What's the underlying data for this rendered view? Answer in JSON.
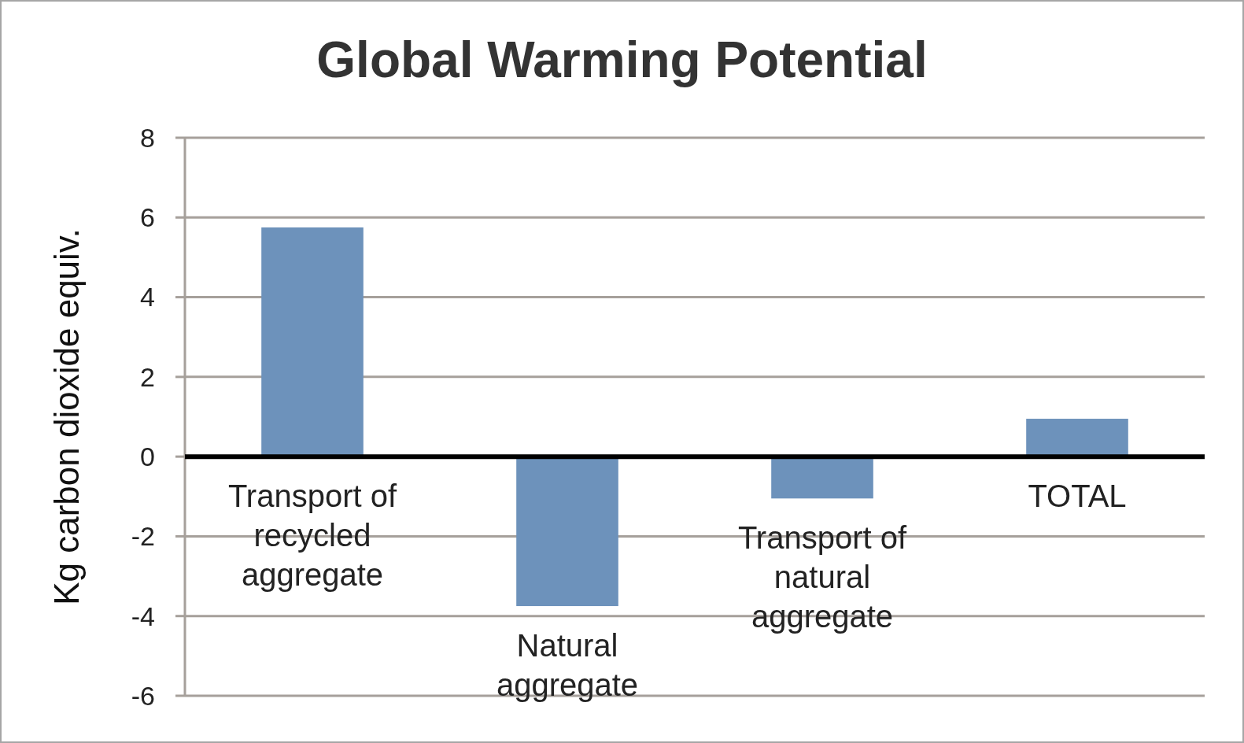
{
  "chart_data": {
    "type": "bar",
    "title": "Global Warming Potential",
    "ylabel": "Kg carbon dioxide equiv.",
    "categories": [
      "Transport of recycled aggregate",
      "Natural aggregate",
      "Transport of natural aggregate",
      "TOTAL"
    ],
    "values": [
      5.75,
      -3.75,
      -1.05,
      0.95
    ],
    "color": "#6d92bb",
    "ylim": [
      -6,
      8
    ],
    "yticks": [
      -6,
      -4,
      -2,
      0,
      2,
      4,
      6,
      8
    ],
    "grid": "y"
  }
}
